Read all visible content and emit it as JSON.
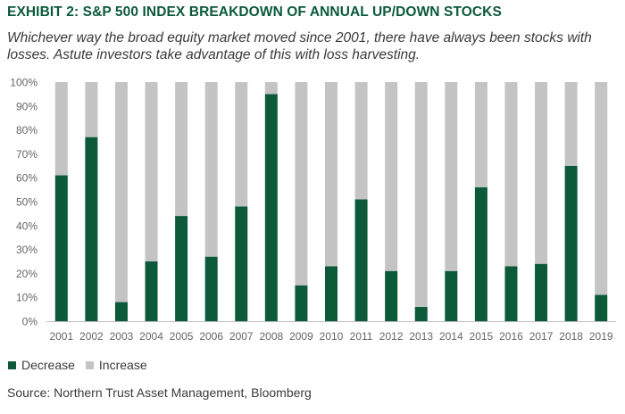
{
  "header": {
    "title": "EXHIBIT 2: S&P 500 INDEX BREAKDOWN OF ANNUAL UP/DOWN STOCKS",
    "subtitle": "Whichever way the broad equity market moved since 2001, there have always been stocks with losses. Astute investors take advantage of this with loss harvesting."
  },
  "source": "Source: Northern Trust Asset Management, Bloomberg",
  "colors": {
    "decrease": "#0c5a3a",
    "increase": "#c4c4c4",
    "axis_text": "#666666"
  },
  "chart_data": {
    "type": "bar",
    "stacked": true,
    "categories": [
      "2001",
      "2002",
      "2003",
      "2004",
      "2005",
      "2006",
      "2007",
      "2008",
      "2009",
      "2010",
      "2011",
      "2012",
      "2013",
      "2014",
      "2015",
      "2016",
      "2017",
      "2018",
      "2019"
    ],
    "series": [
      {
        "name": "Decrease",
        "values": [
          61,
          77,
          8,
          25,
          44,
          27,
          48,
          95,
          15,
          23,
          51,
          21,
          6,
          21,
          56,
          23,
          24,
          65,
          11
        ]
      },
      {
        "name": "Increase",
        "values": [
          39,
          23,
          92,
          75,
          56,
          73,
          52,
          5,
          85,
          77,
          49,
          79,
          94,
          79,
          44,
          77,
          76,
          35,
          89
        ]
      }
    ],
    "yticks": [
      "0%",
      "10%",
      "20%",
      "30%",
      "40%",
      "50%",
      "60%",
      "70%",
      "80%",
      "90%",
      "100%"
    ],
    "ylim": [
      0,
      100
    ],
    "legend_position": "bottom-left",
    "grid": false
  }
}
